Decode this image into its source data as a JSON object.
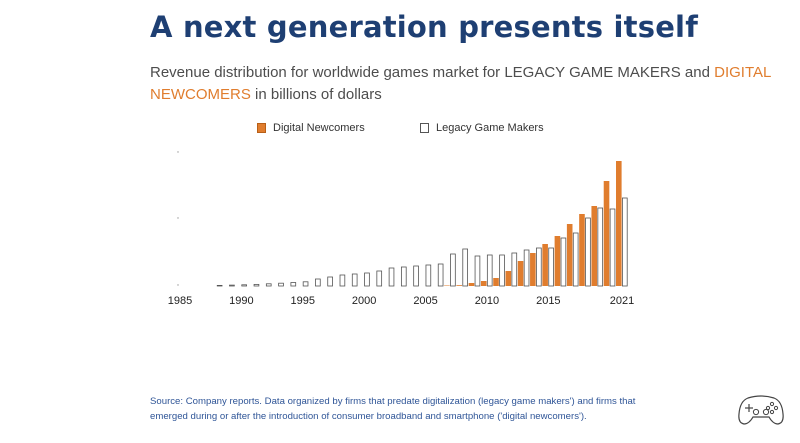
{
  "header": {
    "title": "A next generation presents itself",
    "subtitle_part1": "Revenue distribution for worldwide games market for LEGACY GAME MAKERS and ",
    "subtitle_highlight": "DIGITAL NEWCOMERS",
    "subtitle_part2": " in billions of dollars"
  },
  "source": {
    "text": "Source: Company reports. Data organized by firms that predate digitalization (legacy game makers') and firms that emerged during or after the introduction of consumer broadband and smartphone ('digital newcomers')."
  },
  "icons": {
    "corner": "gamepad-icon"
  },
  "colors": {
    "title": "#1e3f73",
    "digital": "#e07d2e",
    "legacy_border": "#555555",
    "source": "#2f5597"
  },
  "chart_data": {
    "type": "bar",
    "title": "",
    "xlabel": "",
    "ylabel": "",
    "legend_position": "top",
    "x_tick_labels": [
      "1985",
      "1990",
      "1995",
      "2000",
      "2005",
      "2010",
      "2015",
      "2021"
    ],
    "categories": [
      1985,
      1986,
      1987,
      1988,
      1989,
      1990,
      1991,
      1992,
      1993,
      1994,
      1995,
      1996,
      1997,
      1998,
      1999,
      2000,
      2001,
      2002,
      2003,
      2004,
      2005,
      2006,
      2007,
      2008,
      2009,
      2010,
      2011,
      2012,
      2013,
      2014,
      2015,
      2016,
      2017,
      2018,
      2019,
      2020,
      2021
    ],
    "ylim": [
      0,
      130
    ],
    "series": [
      {
        "name": "Digital Newcomers",
        "color": "#e07d2e",
        "values": [
          0,
          0,
          0,
          0,
          0,
          0,
          0,
          0,
          0,
          0,
          0,
          0,
          0,
          0,
          0,
          0,
          0,
          0,
          0,
          0,
          0,
          0,
          0.5,
          0.8,
          3,
          5,
          8,
          15,
          25,
          33,
          42,
          50,
          62,
          72,
          80,
          105,
          125
        ]
      },
      {
        "name": "Legacy Game Makers",
        "color": "#ffffff",
        "values": [
          0,
          0,
          0,
          0.6,
          0.9,
          1.2,
          1.6,
          2.2,
          2.8,
          3.5,
          4.2,
          7,
          9,
          11,
          12,
          13,
          15,
          18,
          19,
          20,
          21,
          22,
          32,
          37,
          30,
          31,
          31,
          33,
          36,
          38,
          38,
          48,
          53,
          68,
          78,
          77,
          88
        ]
      }
    ]
  }
}
